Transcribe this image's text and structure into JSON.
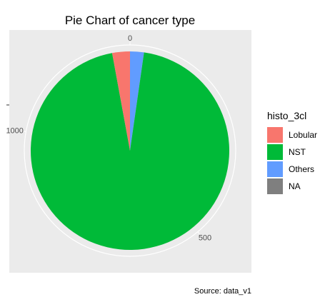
{
  "chart_data": {
    "type": "pie",
    "title": "Pie Chart of cancer type",
    "caption": "Source: data_v1",
    "legend_title": "histo_3cl",
    "legend_position": "right",
    "categories": [
      "Lobular",
      "NST",
      "Others",
      "NA"
    ],
    "values": [
      37,
      1218,
      29,
      0
    ],
    "colors": [
      "#F8766D",
      "#00BA38",
      "#619CFF",
      "#7F7F7F"
    ],
    "angular_ticks": [
      0,
      500,
      1000
    ],
    "grid": true,
    "panel_background": "#EBEBEB"
  }
}
